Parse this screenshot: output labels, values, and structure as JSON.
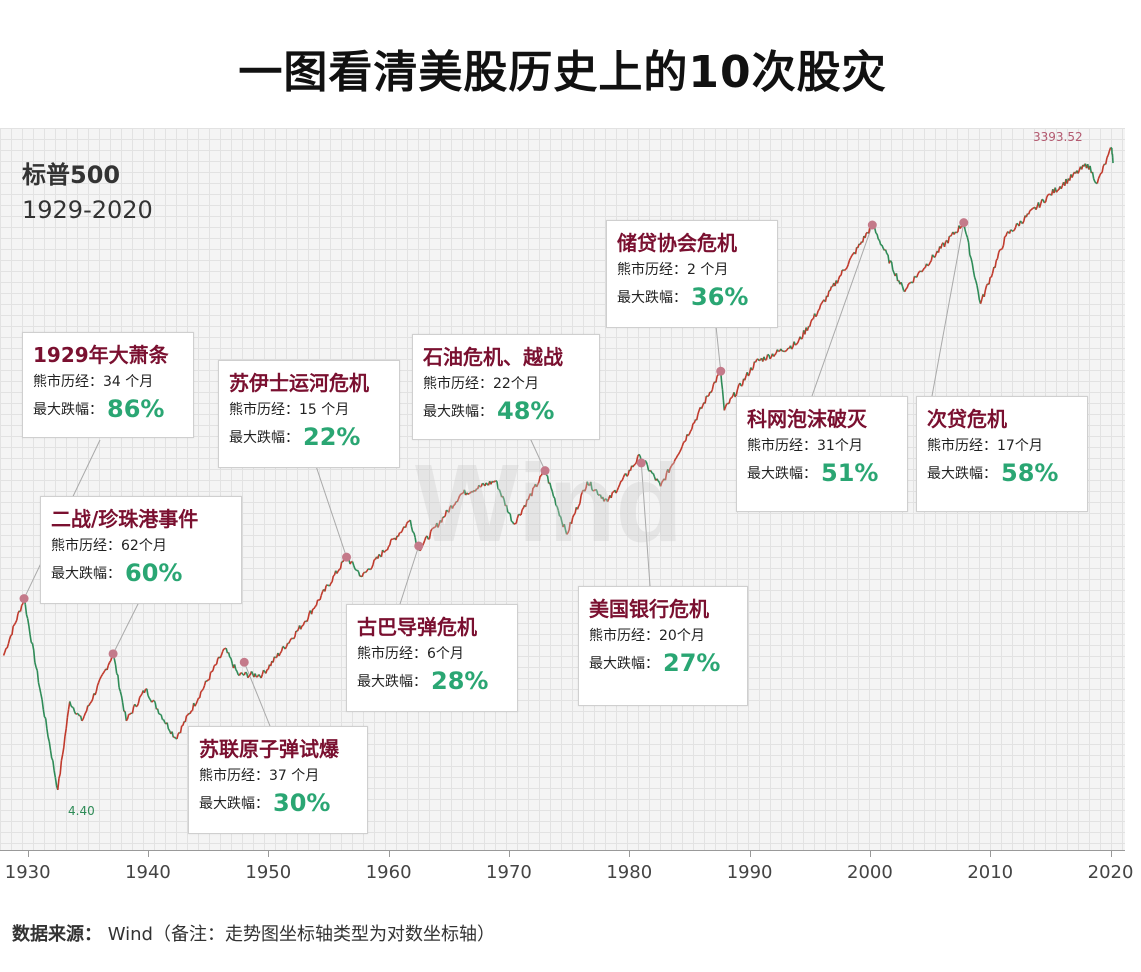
{
  "title": "一图看清美股历史上的10次股灾",
  "index": {
    "name": "标普500",
    "years": "1929-2020"
  },
  "watermark": "Wind",
  "max_label": "3393.52",
  "min_label": "4.40",
  "colors": {
    "title": "#7a1030",
    "pct": "#2aa673",
    "line_up": "#c0392b",
    "line_down": "#2e8b57",
    "marker": "#c47a8a"
  },
  "events": [
    {
      "title": "1929年大萧条",
      "months_label": "熊市历经：",
      "months": "34 个月",
      "drop_label": "最大跌幅：",
      "drop": "86%"
    },
    {
      "title": "二战/珍珠港事件",
      "months_label": "熊市历经：",
      "months": "62个月",
      "drop_label": "最大跌幅：",
      "drop": "60%"
    },
    {
      "title": "苏伊士运河危机",
      "months_label": "熊市历经：",
      "months": "15 个月",
      "drop_label": "最大跌幅：",
      "drop": "22%"
    },
    {
      "title": "苏联原子弹试爆",
      "months_label": "熊市历经：",
      "months": "37 个月",
      "drop_label": "最大跌幅：",
      "drop": "30%"
    },
    {
      "title": "古巴导弹危机",
      "months_label": "熊市历经：",
      "months": "6个月",
      "drop_label": "最大跌幅：",
      "drop": "28%"
    },
    {
      "title": "石油危机、越战",
      "months_label": "熊市历经：",
      "months": "22个月",
      "drop_label": "最大跌幅：",
      "drop": "48%"
    },
    {
      "title": "储贷协会危机",
      "months_label": "熊市历经：",
      "months": "2 个月",
      "drop_label": "最大跌幅：",
      "drop": "36%"
    },
    {
      "title": "美国银行危机",
      "months_label": "熊市历经：",
      "months": "20个月",
      "drop_label": "最大跌幅：",
      "drop": "27%"
    },
    {
      "title": "科网泡沫破灭",
      "months_label": "熊市历经：",
      "months": "31个月",
      "drop_label": "最大跌幅：",
      "drop": "51%"
    },
    {
      "title": "次贷危机",
      "months_label": "熊市历经：",
      "months": "17个月",
      "drop_label": "最大跌幅：",
      "drop": "58%"
    }
  ],
  "source": {
    "label": "数据来源：",
    "text": "Wind（备注：走势图坐标轴类型为对数坐标轴）"
  },
  "chart_data": {
    "type": "line",
    "title": "一图看清美股历史上的10次股灾",
    "series": [
      {
        "name": "标普500",
        "points": [
          [
            1928.0,
            17.7
          ],
          [
            1929.7,
            31.9
          ],
          [
            1932.5,
            4.4
          ],
          [
            1933.5,
            11.0
          ],
          [
            1934.5,
            9.0
          ],
          [
            1937.1,
            18.0
          ],
          [
            1938.2,
            9.0
          ],
          [
            1939.8,
            12.5
          ],
          [
            1942.3,
            7.5
          ],
          [
            1946.4,
            19.0
          ],
          [
            1947.5,
            14.5
          ],
          [
            1949.5,
            14.5
          ],
          [
            1953.0,
            25.0
          ],
          [
            1956.5,
            49.0
          ],
          [
            1957.8,
            40.0
          ],
          [
            1961.8,
            72.0
          ],
          [
            1962.5,
            53.0
          ],
          [
            1966.0,
            94.0
          ],
          [
            1968.9,
            108.0
          ],
          [
            1970.4,
            69.0
          ],
          [
            1973.0,
            120.0
          ],
          [
            1974.8,
            62.0
          ],
          [
            1976.5,
            107.0
          ],
          [
            1978.2,
            87.0
          ],
          [
            1980.9,
            140.0
          ],
          [
            1982.6,
            102.0
          ],
          [
            1987.6,
            336.0
          ],
          [
            1987.9,
            224.0
          ],
          [
            1990.5,
            369.0
          ],
          [
            1994.0,
            450.0
          ],
          [
            2000.2,
            1527.0
          ],
          [
            2002.8,
            776.0
          ],
          [
            2007.8,
            1565.0
          ],
          [
            2009.2,
            676.0
          ],
          [
            2011.3,
            1360.0
          ],
          [
            2015.0,
            2100.0
          ],
          [
            2018.1,
            2870.0
          ],
          [
            2018.9,
            2350.0
          ],
          [
            2020.1,
            3393.52
          ],
          [
            2020.2,
            2900.0
          ]
        ]
      }
    ],
    "markers": [
      {
        "event": "1929年大萧条",
        "x": 1929.7,
        "y": 31.9
      },
      {
        "event": "二战/珍珠港事件",
        "x": 1937.1,
        "y": 18.0
      },
      {
        "event": "苏伊士运河危机",
        "x": 1956.5,
        "y": 49.0
      },
      {
        "event": "苏联原子弹试爆",
        "x": 1948.0,
        "y": 16.5
      },
      {
        "event": "古巴导弹危机",
        "x": 1962.5,
        "y": 55.0
      },
      {
        "event": "石油危机、越战",
        "x": 1973.0,
        "y": 120.0
      },
      {
        "event": "储贷协会危机",
        "x": 1987.6,
        "y": 336.0
      },
      {
        "event": "美国银行危机",
        "x": 1981.0,
        "y": 130.0
      },
      {
        "event": "科网泡沫破灭",
        "x": 2000.2,
        "y": 1527.0
      },
      {
        "event": "次贷危机",
        "x": 2007.8,
        "y": 1565.0
      }
    ],
    "x_ticks": [
      "1930",
      "1940",
      "1950",
      "1960",
      "1970",
      "1980",
      "1990",
      "2000",
      "2010",
      "2020"
    ],
    "xlim": [
      1927.7,
      2021.2
    ],
    "ylim": [
      3.5,
      4000
    ],
    "y_scale": "log",
    "grid": true,
    "xlabel": "",
    "ylabel": ""
  }
}
